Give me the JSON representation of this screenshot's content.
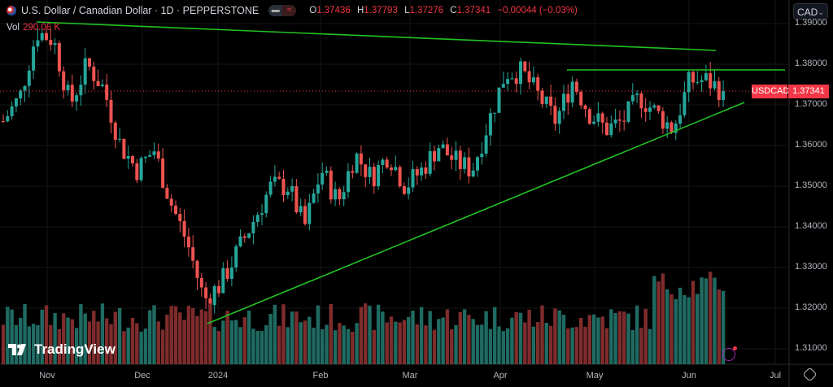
{
  "header": {
    "symbol_title": "U.S. Dollar / Canadian Dollar · 1D · PEPPERSTONE",
    "ohlc": {
      "o_label": "O",
      "o": "1.37436",
      "h_label": "H",
      "h": "1.37793",
      "l_label": "L",
      "l": "1.37276",
      "c_label": "C",
      "c": "1.37341",
      "change": "−0.00044 (−0.03%)"
    },
    "volume_label": "Vol",
    "volume_value": "290.06 K"
  },
  "currency_selector": {
    "value": "CAD"
  },
  "last_price": {
    "symbol": "USDCAD",
    "price": "1.37341"
  },
  "brand": "TradingView",
  "colors": {
    "up": "#26a69a",
    "down": "#ef5350",
    "vol_up": "#1f6b62",
    "vol_down": "#7e2c2c",
    "trendline": "#22c322",
    "label": "#f23645"
  },
  "chart_data": {
    "type": "candlestick",
    "ylim": [
      1.305,
      1.392
    ],
    "y_ticks": [
      "1.39000",
      "1.38000",
      "1.37000",
      "1.36000",
      "1.35000",
      "1.34000",
      "1.33000",
      "1.32000",
      "1.31000"
    ],
    "x_ticks": [
      "Nov",
      "Dec",
      "2024",
      "Feb",
      "Mar",
      "Apr",
      "May",
      "Jun",
      "Jul"
    ],
    "close_path": [
      1.366,
      1.372,
      1.388,
      1.386,
      1.37,
      1.38,
      1.374,
      1.36,
      1.354,
      1.359,
      1.346,
      1.336,
      1.322,
      1.326,
      1.334,
      1.342,
      1.35,
      1.35,
      1.34,
      1.354,
      1.346,
      1.358,
      1.352,
      1.358,
      1.35,
      1.354,
      1.36,
      1.356,
      1.354,
      1.366,
      1.378,
      1.378,
      1.372,
      1.366,
      1.376,
      1.368,
      1.364,
      1.366,
      1.372,
      1.368,
      1.364,
      1.376,
      1.376,
      1.3734
    ],
    "trendlines": [
      {
        "from_price": 1.3904,
        "to_price": 1.3834
      },
      {
        "from_price": 1.3786,
        "to_price": 1.3786
      },
      {
        "from_price": 1.3162,
        "to_price": 1.3706
      }
    ]
  },
  "icons": [
    "us-flag-icon",
    "toggle-icon",
    "chevron-down-icon",
    "settings-icon",
    "lightning-icon",
    "tradingview-logo"
  ]
}
